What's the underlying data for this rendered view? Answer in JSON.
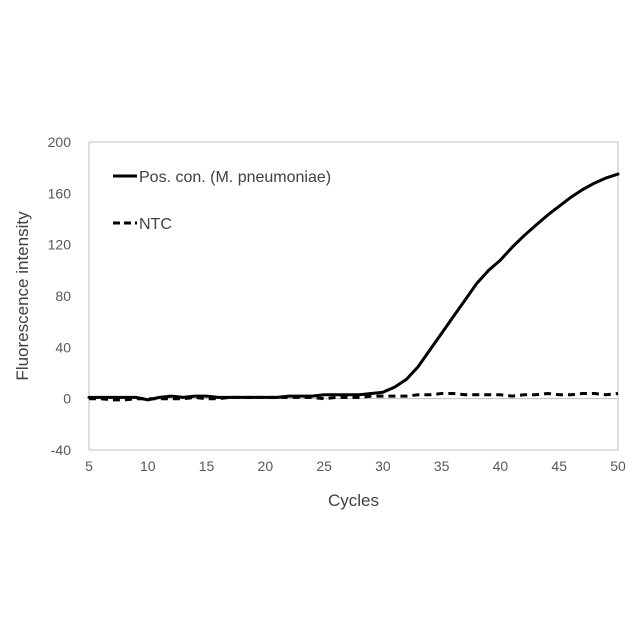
{
  "chart_data": {
    "type": "line",
    "title": "",
    "xlabel": "Cycles",
    "ylabel": "Fluorescence intensity",
    "xlim": [
      5,
      50
    ],
    "ylim": [
      -40,
      200
    ],
    "xticks": [
      5,
      10,
      15,
      20,
      25,
      30,
      35,
      40,
      45,
      50
    ],
    "yticks": [
      -40,
      0,
      40,
      80,
      120,
      160,
      200
    ],
    "grid": false,
    "legend_position": "top-left",
    "series": [
      {
        "name": "Pos. con. (M. pneumoniae)",
        "style": "solid",
        "color": "#000000",
        "x": [
          5,
          6,
          7,
          8,
          9,
          10,
          11,
          12,
          13,
          14,
          15,
          16,
          17,
          18,
          19,
          20,
          21,
          22,
          23,
          24,
          25,
          26,
          27,
          28,
          29,
          30,
          31,
          32,
          33,
          34,
          35,
          36,
          37,
          38,
          39,
          40,
          41,
          42,
          43,
          44,
          45,
          46,
          47,
          48,
          49,
          50
        ],
        "y": [
          1,
          1,
          1,
          1,
          1,
          -1,
          1,
          2,
          1,
          2,
          2,
          1,
          1,
          1,
          1,
          1,
          1,
          2,
          2,
          2,
          3,
          3,
          3,
          3,
          4,
          5,
          9,
          15,
          25,
          38,
          51,
          64,
          77,
          90,
          100,
          108,
          118,
          127,
          135,
          143,
          150,
          157,
          163,
          168,
          172,
          175
        ]
      },
      {
        "name": "NTC",
        "style": "dashed",
        "color": "#000000",
        "x": [
          5,
          6,
          7,
          8,
          9,
          10,
          11,
          12,
          13,
          14,
          15,
          16,
          17,
          18,
          19,
          20,
          21,
          22,
          23,
          24,
          25,
          26,
          27,
          28,
          29,
          30,
          31,
          32,
          33,
          34,
          35,
          36,
          37,
          38,
          39,
          40,
          41,
          42,
          43,
          44,
          45,
          46,
          47,
          48,
          49,
          50
        ],
        "y": [
          0,
          0,
          -1,
          -1,
          0,
          0,
          0,
          0,
          0,
          1,
          0,
          0,
          1,
          1,
          1,
          1,
          1,
          1,
          1,
          1,
          0,
          1,
          1,
          1,
          2,
          2,
          2,
          2,
          3,
          3,
          4,
          4,
          3,
          3,
          3,
          3,
          2,
          3,
          3,
          4,
          3,
          3,
          4,
          4,
          3,
          4
        ]
      }
    ]
  }
}
